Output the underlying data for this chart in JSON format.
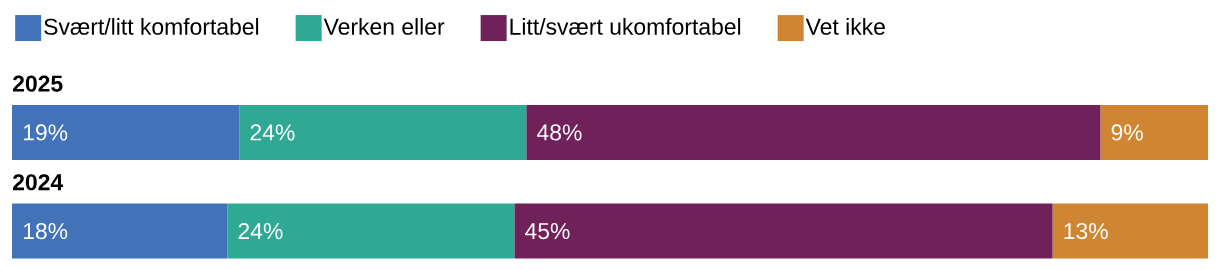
{
  "chart_data": {
    "type": "bar",
    "orientation": "horizontal",
    "stacked": true,
    "categories": [
      "2025",
      "2024"
    ],
    "xlim": [
      0,
      100
    ],
    "tick_labels": false,
    "legend": "top left",
    "series": [
      {
        "name": "Svært/litt komfortabel",
        "color": "#4272b8",
        "values": [
          19,
          18
        ],
        "value_labels": [
          "19%",
          "18%"
        ]
      },
      {
        "name": "Verken eller",
        "color": "#2fa894",
        "values": [
          24,
          24
        ],
        "value_labels": [
          "24%",
          "24%"
        ]
      },
      {
        "name": "Litt/svært ukomfortabel",
        "color": "#71215a",
        "values": [
          48,
          45
        ],
        "value_labels": [
          "48%",
          "45%"
        ]
      },
      {
        "name": "Vet ikke",
        "color": "#d08532",
        "values": [
          9,
          13
        ],
        "value_labels": [
          "9%",
          "13%"
        ]
      }
    ]
  }
}
